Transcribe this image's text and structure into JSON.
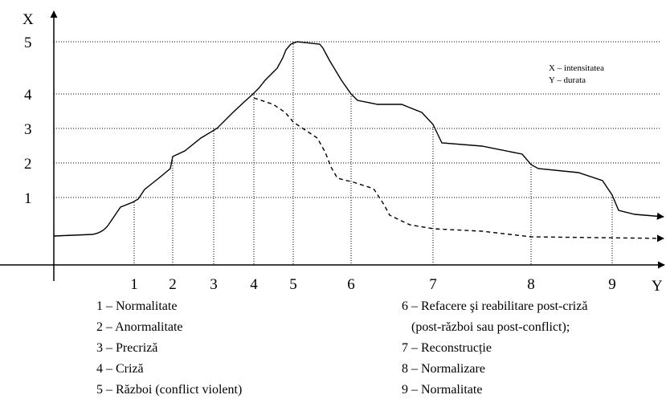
{
  "axes": {
    "y_label": "X",
    "x_label": "Y"
  },
  "y_ticks": [
    "1",
    "2",
    "3",
    "4",
    "5"
  ],
  "x_ticks": [
    "1",
    "2",
    "3",
    "4",
    "5",
    "6",
    "7",
    "8",
    "9"
  ],
  "key": [
    "X – intensitatea",
    "Y – durata"
  ],
  "legend_left": [
    "1 – Normalitate",
    "2 – Anormalitate",
    "3 – Precriză",
    "4 – Criză",
    "5 – Război (conflict violent)"
  ],
  "legend_right": [
    "6 – Refacere şi reabilitare post-criză",
    "(post-război sau post-conflict);",
    "7 – Reconstrucție",
    "8 – Normalizare",
    "9 – Normalitate"
  ]
}
